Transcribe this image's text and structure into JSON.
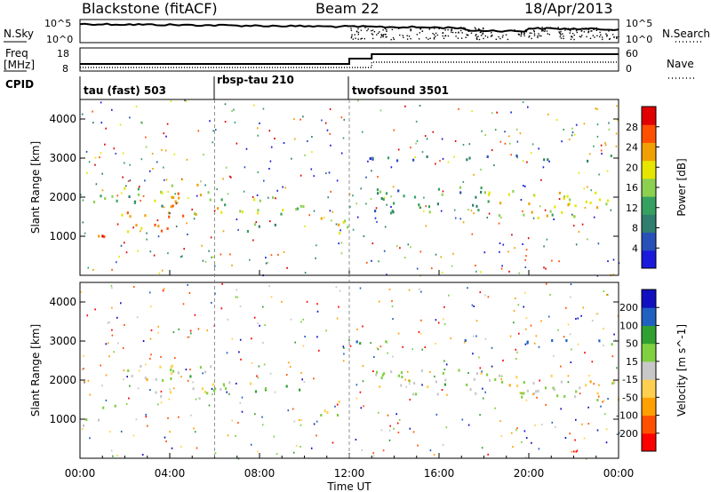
{
  "header": {
    "station": "Blackstone (fitACF)",
    "beam": "Beam 22",
    "date": "18/Apr/2013"
  },
  "aux_panels": {
    "nsky_label": "N.Sky",
    "nsky_ticks": [
      "10^5",
      "10^0"
    ],
    "nsearch_label": "N.Search",
    "nsearch_ticks": [
      "10^5",
      "10^0"
    ],
    "freq_label_top": "Freq",
    "freq_label_bottom": "[MHz]",
    "freq_ticks": [
      "18",
      "8"
    ],
    "nave_label": "Nave",
    "nave_ticks": [
      "60",
      "0"
    ],
    "cpid_label": "CPID",
    "cpid_segments": [
      {
        "label": "tau (fast) 503",
        "start": "00:00"
      },
      {
        "label": "rbsp-tau 210",
        "start": "06:00"
      },
      {
        "label": "twofsound 3501",
        "start": "12:00"
      }
    ]
  },
  "x_axis": {
    "title": "Time UT",
    "ticks": [
      "00:00",
      "04:00",
      "08:00",
      "12:00",
      "16:00",
      "20:00",
      "00:00"
    ]
  },
  "chart_data": [
    {
      "type": "heatmap",
      "ylabel": "Slant Range [km]",
      "ylim": [
        0,
        4500
      ],
      "y_ticks": [
        1000,
        2000,
        3000,
        4000
      ],
      "x_range_hours": [
        0,
        24
      ],
      "colorbar": {
        "label": "Power [dB]",
        "ticks": [
          "28",
          "24",
          "20",
          "16",
          "12",
          "8",
          "4"
        ],
        "range": [
          0,
          30
        ],
        "colors": [
          "#1a1adc",
          "#2850b8",
          "#2f7e6e",
          "#36a060",
          "#8cd050",
          "#e6e600",
          "#f0a000",
          "#ff5000",
          "#e00000"
        ]
      },
      "echo_bands": [
        {
          "t0": 0.0,
          "t1": 1.5,
          "r0": 850,
          "r1": 1050,
          "level": 28
        },
        {
          "t0": 1.5,
          "t1": 4.0,
          "r0": 1100,
          "r1": 1700,
          "level": 22
        },
        {
          "t0": 0.5,
          "t1": 4.0,
          "r0": 1800,
          "r1": 2300,
          "level": 14
        },
        {
          "t0": 4.0,
          "t1": 6.0,
          "r0": 1500,
          "r1": 2400,
          "level": 20
        },
        {
          "t0": 6.0,
          "t1": 10.0,
          "r0": 1600,
          "r1": 2100,
          "level": 16
        },
        {
          "t0": 7.0,
          "t1": 9.5,
          "r0": 1150,
          "r1": 1350,
          "level": 12
        },
        {
          "t0": 10.5,
          "t1": 12.0,
          "r0": 1100,
          "r1": 1600,
          "level": 18
        },
        {
          "t0": 13.0,
          "t1": 18.0,
          "r0": 1600,
          "r1": 2300,
          "level": 10
        },
        {
          "t0": 18.0,
          "t1": 24.0,
          "r0": 1500,
          "r1": 2200,
          "level": 18
        },
        {
          "t0": 12.0,
          "t1": 24.0,
          "r0": 2950,
          "r1": 3100,
          "level": 6
        }
      ]
    },
    {
      "type": "heatmap",
      "ylabel": "Slant Range [km]",
      "ylim": [
        0,
        4500
      ],
      "y_ticks": [
        1000,
        2000,
        3000,
        4000
      ],
      "x_range_hours": [
        0,
        24
      ],
      "colorbar": {
        "label": "Velocity [m s^-1]",
        "ticks": [
          "200",
          "100",
          "50",
          "15",
          "-15",
          "-50",
          "-100",
          "-200"
        ],
        "range": [
          -250,
          250
        ],
        "colors": [
          "#ff0000",
          "#ff5000",
          "#ffa000",
          "#ffd050",
          "#c8c8c8",
          "#80d040",
          "#30a030",
          "#2060c0",
          "#1010c0"
        ]
      },
      "echo_bands": [
        {
          "t0": 0.0,
          "t1": 1.5,
          "r0": 850,
          "r1": 1050,
          "level": 0
        },
        {
          "t0": 0.0,
          "t1": 2.0,
          "r0": 1300,
          "r1": 1400,
          "level": 0
        },
        {
          "t0": 2.0,
          "t1": 6.0,
          "r0": 1500,
          "r1": 2400,
          "level": 0
        },
        {
          "t0": 6.0,
          "t1": 10.0,
          "r0": 1700,
          "r1": 2000,
          "level": 30
        },
        {
          "t0": 10.5,
          "t1": 12.0,
          "r0": 1100,
          "r1": 1500,
          "level": 20
        },
        {
          "t0": 13.0,
          "t1": 18.0,
          "r0": 1600,
          "r1": 2300,
          "level": 0
        },
        {
          "t0": 18.0,
          "t1": 24.0,
          "r0": 1500,
          "r1": 2200,
          "level": 0
        },
        {
          "t0": 12.0,
          "t1": 24.0,
          "r0": 2950,
          "r1": 3050,
          "level": 100
        }
      ]
    }
  ]
}
